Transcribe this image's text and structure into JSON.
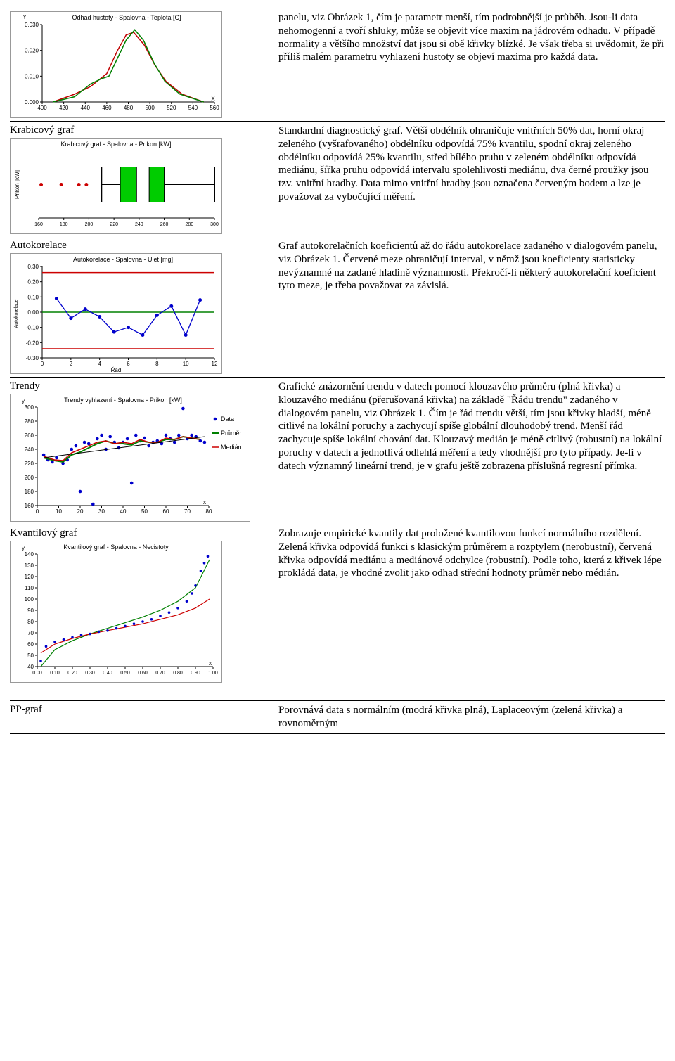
{
  "row1": {
    "label": "",
    "text": "panelu, viz Obrázek 1, čím je parametr menší, tím podrobnější je průběh. Jsou-li data nehomogenní a tvoří shluky, může se objevit více maxim na jádrovém odhadu. V případě normality a většího množství dat jsou si obě křivky blízké. Je však třeba si uvědomit, že při příliš malém parametru vyhlazení hustoty se objeví maxima pro každá data.",
    "chart": {
      "title": "Odhad hustoty - Spalovna - Teplota [C]",
      "ylabel": "Y",
      "xlabel": "X",
      "xlim": [
        400,
        560
      ],
      "xtick_step": 20,
      "ylim": [
        0,
        0.03
      ],
      "yticks": [
        0.0,
        0.01,
        0.02,
        0.03
      ],
      "curves": [
        {
          "color": "#c00000",
          "points": [
            [
              410,
              0.0
            ],
            [
              430,
              0.003
            ],
            [
              445,
              0.006
            ],
            [
              460,
              0.011
            ],
            [
              470,
              0.02
            ],
            [
              478,
              0.026
            ],
            [
              485,
              0.027
            ],
            [
              495,
              0.022
            ],
            [
              505,
              0.014
            ],
            [
              515,
              0.008
            ],
            [
              530,
              0.003
            ],
            [
              550,
              0.0
            ]
          ]
        },
        {
          "color": "#008000",
          "points": [
            [
              410,
              0.0
            ],
            [
              430,
              0.002
            ],
            [
              445,
              0.007
            ],
            [
              455,
              0.009
            ],
            [
              462,
              0.01
            ],
            [
              470,
              0.017
            ],
            [
              478,
              0.024
            ],
            [
              486,
              0.028
            ],
            [
              494,
              0.024
            ],
            [
              504,
              0.015
            ],
            [
              514,
              0.008
            ],
            [
              528,
              0.003
            ],
            [
              550,
              0.0
            ]
          ]
        }
      ]
    }
  },
  "row2": {
    "label": "Krabicový graf",
    "text": "Standardní diagnostický graf. Větší obdélník ohraničuje vnitřních 50% dat, horní okraj zeleného (vyšrafovaného) obdélníku odpovídá 75% kvantilu, spodní okraj zeleného obdélníku odpovídá 25% kvantilu, střed bílého pruhu v zeleném obdélníku odpovídá mediánu, šířka pruhu odpovídá intervalu spolehlivosti mediánu, dva černé proužky jsou tzv. vnitřní hradby. Data mimo vnitřní hradby jsou označena červeným bodem a lze je považovat za vybočující měření.",
    "chart": {
      "title": "Krabicový graf - Spalovna - Prikon [kW]",
      "ylabel": "Prikon [kW]",
      "xlabel": "",
      "xlim": [
        160,
        300
      ],
      "xticks": [
        160,
        180,
        200,
        220,
        240,
        260,
        280,
        300
      ],
      "outliers_x": [
        162,
        178,
        192,
        198
      ],
      "whisker_low": 210,
      "whisker_high": 300,
      "box_low": 225,
      "box_high": 260,
      "median_low": 238,
      "median_high": 248,
      "box_color": "#00cc00",
      "outlier_color": "#cc0000"
    }
  },
  "row3": {
    "label": "Autokorelace",
    "text": "Graf autokorelačních koeficientů až do řádu autokorelace zadaného v dialogovém panelu, viz Obrázek 1. Červené meze ohraničují interval, v němž jsou koeficienty statisticky nevýznamné na zadané hladině významnosti. Překročí-li některý autokorelační koeficient tyto meze, je třeba považovat za závislá.",
    "chart": {
      "title": "Autokorelace - Spalovna - Ulet [mg]",
      "ylabel": "Autokorelace",
      "xlabel": "Řád",
      "xlim": [
        0,
        12
      ],
      "xtick_step": 2,
      "ylim": [
        -0.3,
        0.3
      ],
      "yticks": [
        -0.3,
        -0.2,
        -0.1,
        -0.0,
        0.1,
        0.2,
        0.3
      ],
      "bound_color": "#cc0000",
      "bound_low": -0.24,
      "bound_high": 0.26,
      "line_color": "#0000cc",
      "zero_color": "#008000",
      "points": [
        [
          1,
          0.09
        ],
        [
          2,
          -0.04
        ],
        [
          3,
          0.02
        ],
        [
          4,
          -0.03
        ],
        [
          5,
          -0.13
        ],
        [
          6,
          -0.1
        ],
        [
          7,
          -0.15
        ],
        [
          8,
          -0.02
        ],
        [
          9,
          0.04
        ],
        [
          10,
          -0.15
        ],
        [
          11,
          0.08
        ]
      ]
    }
  },
  "row4": {
    "label": "Trendy",
    "text": "Grafické znázornění trendu v datech pomocí klouzavého průměru (plná křivka) a klouzavého mediánu (přerušovaná křivka) na základě \"Řádu trendu\" zadaného v dialogovém panelu, viz Obrázek 1. Čím je řád trendu větší, tím jsou křivky hladší, méně citlivé na lokální poruchy a zachycují spíše globální dlouhodobý trend. Menší řád zachycuje spíše lokální chování dat. Klouzavý medián je méně citlivý (robustní) na lokální poruchy v datech a jednotlivá odlehlá měření a tedy vhodnější pro tyto případy. Je-li v datech významný lineární trend, je v grafu ještě zobrazena příslušná regresní přímka.",
    "chart": {
      "title": "Trendy vyhlazení - Spalovna - Prikon [kW]",
      "ylabel": "y",
      "xlabel": "x",
      "xlim": [
        0,
        80
      ],
      "xtick_step": 10,
      "ylim": [
        160,
        300
      ],
      "ytick_step": 20,
      "legend": [
        "Data",
        "Průměr",
        "Medián"
      ],
      "data_color": "#0000cc",
      "mean_color": "#008000",
      "median_color": "#cc0000",
      "regress_color": "#000000",
      "scatter": [
        [
          3,
          232
        ],
        [
          5,
          225
        ],
        [
          7,
          222
        ],
        [
          9,
          228
        ],
        [
          12,
          220
        ],
        [
          14,
          225
        ],
        [
          16,
          240
        ],
        [
          18,
          245
        ],
        [
          20,
          180
        ],
        [
          22,
          250
        ],
        [
          24,
          248
        ],
        [
          26,
          162
        ],
        [
          28,
          255
        ],
        [
          30,
          260
        ],
        [
          32,
          240
        ],
        [
          34,
          258
        ],
        [
          36,
          250
        ],
        [
          38,
          242
        ],
        [
          40,
          250
        ],
        [
          42,
          255
        ],
        [
          44,
          192
        ],
        [
          46,
          260
        ],
        [
          48,
          252
        ],
        [
          50,
          256
        ],
        [
          52,
          245
        ],
        [
          54,
          250
        ],
        [
          56,
          252
        ],
        [
          58,
          248
        ],
        [
          60,
          260
        ],
        [
          62,
          255
        ],
        [
          64,
          250
        ],
        [
          66,
          260
        ],
        [
          68,
          298
        ],
        [
          70,
          255
        ],
        [
          72,
          260
        ],
        [
          74,
          258
        ],
        [
          76,
          252
        ],
        [
          78,
          250
        ]
      ],
      "mean_line": [
        [
          3,
          228
        ],
        [
          8,
          224
        ],
        [
          12,
          222
        ],
        [
          16,
          232
        ],
        [
          20,
          236
        ],
        [
          24,
          242
        ],
        [
          28,
          248
        ],
        [
          32,
          252
        ],
        [
          36,
          248
        ],
        [
          40,
          248
        ],
        [
          44,
          246
        ],
        [
          48,
          252
        ],
        [
          52,
          250
        ],
        [
          56,
          250
        ],
        [
          60,
          254
        ],
        [
          64,
          254
        ],
        [
          68,
          258
        ],
        [
          72,
          256
        ],
        [
          76,
          254
        ]
      ],
      "median_line": [
        [
          3,
          230
        ],
        [
          8,
          225
        ],
        [
          12,
          224
        ],
        [
          16,
          235
        ],
        [
          20,
          240
        ],
        [
          24,
          245
        ],
        [
          28,
          250
        ],
        [
          32,
          252
        ],
        [
          36,
          248
        ],
        [
          40,
          250
        ],
        [
          44,
          248
        ],
        [
          48,
          254
        ],
        [
          52,
          250
        ],
        [
          56,
          250
        ],
        [
          60,
          256
        ],
        [
          64,
          254
        ],
        [
          68,
          258
        ],
        [
          72,
          256
        ],
        [
          76,
          254
        ]
      ],
      "regress": [
        [
          3,
          228
        ],
        [
          78,
          258
        ]
      ]
    }
  },
  "row5": {
    "label": "Kvantilový graf",
    "text": "Zobrazuje empirické kvantily dat proložené kvantilovou funkcí normálního rozdělení. Zelená křivka odpovídá funkci s klasickým průměrem a rozptylem (nerobustní), červená křivka odpovídá mediánu a mediánové odchylce (robustní). Podle toho, která z křivek lépe prokládá data, je vhodné zvolit jako odhad střední hodnoty průměr nebo médián.",
    "chart": {
      "title": "Kvantilový graf - Spalovna - Necistoty",
      "ylabel": "y",
      "xlabel": "x",
      "xlim": [
        0.0,
        1.0
      ],
      "xtick_step": 0.1,
      "ylim": [
        40,
        140
      ],
      "ytick_step": 10,
      "data_color": "#0000cc",
      "green_color": "#008000",
      "red_color": "#cc0000",
      "data_curve": [
        [
          0.02,
          45
        ],
        [
          0.05,
          58
        ],
        [
          0.1,
          62
        ],
        [
          0.15,
          64
        ],
        [
          0.2,
          66
        ],
        [
          0.25,
          68
        ],
        [
          0.3,
          69
        ],
        [
          0.35,
          71
        ],
        [
          0.4,
          72
        ],
        [
          0.45,
          74
        ],
        [
          0.5,
          76
        ],
        [
          0.55,
          78
        ],
        [
          0.6,
          80
        ],
        [
          0.65,
          82
        ],
        [
          0.7,
          85
        ],
        [
          0.75,
          88
        ],
        [
          0.8,
          92
        ],
        [
          0.85,
          98
        ],
        [
          0.88,
          105
        ],
        [
          0.9,
          112
        ],
        [
          0.93,
          125
        ],
        [
          0.95,
          132
        ],
        [
          0.97,
          138
        ]
      ],
      "green_curve": [
        [
          0.02,
          40
        ],
        [
          0.1,
          55
        ],
        [
          0.2,
          63
        ],
        [
          0.3,
          69
        ],
        [
          0.4,
          74
        ],
        [
          0.5,
          79
        ],
        [
          0.6,
          84
        ],
        [
          0.7,
          90
        ],
        [
          0.8,
          98
        ],
        [
          0.9,
          110
        ],
        [
          0.98,
          135
        ]
      ],
      "red_curve": [
        [
          0.02,
          52
        ],
        [
          0.1,
          60
        ],
        [
          0.2,
          65
        ],
        [
          0.3,
          69
        ],
        [
          0.4,
          72
        ],
        [
          0.5,
          75
        ],
        [
          0.6,
          78
        ],
        [
          0.7,
          82
        ],
        [
          0.8,
          86
        ],
        [
          0.9,
          92
        ],
        [
          0.98,
          100
        ]
      ]
    }
  },
  "row6": {
    "label": "PP-graf",
    "text": "Porovnává data s normálním (modrá křivka plná), Laplaceovým (zelená křivka) a rovnoměrným"
  }
}
